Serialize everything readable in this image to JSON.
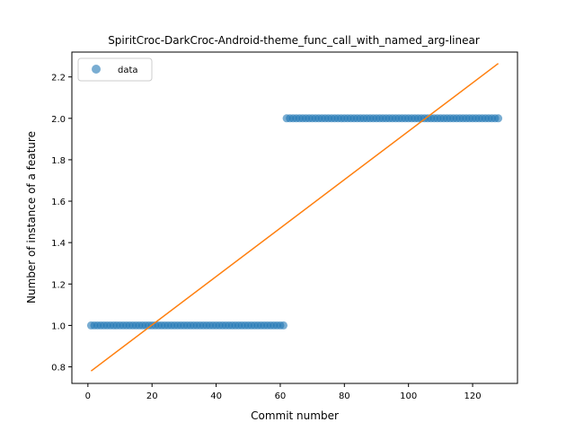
{
  "chart_data": {
    "type": "scatter",
    "title": "SpiritCroc-DarkCroc-Android-theme_func_call_with_named_arg-linear",
    "xlabel": "Commit number",
    "ylabel": "Number of instance of a feature",
    "xlim": [
      -5,
      134
    ],
    "ylim": [
      0.72,
      2.32
    ],
    "xticks": [
      0,
      20,
      40,
      60,
      80,
      100,
      120
    ],
    "yticks": [
      0.8,
      1.0,
      1.2,
      1.4,
      1.6,
      1.8,
      2.0,
      2.2
    ],
    "xtick_labels": [
      "0",
      "20",
      "40",
      "60",
      "80",
      "100",
      "120"
    ],
    "ytick_labels": [
      "0.8",
      "1.0",
      "1.2",
      "1.4",
      "1.6",
      "1.8",
      "2.0",
      "2.2"
    ],
    "legend": {
      "placement": "upper-left",
      "entries": [
        "data"
      ]
    },
    "grid": false,
    "series": [
      {
        "name": "data",
        "kind": "points",
        "color": "#1f77b4",
        "segments": [
          {
            "x_from": 1,
            "x_to": 61,
            "y": 1.0
          },
          {
            "x_from": 62,
            "x_to": 128,
            "y": 2.0
          }
        ]
      },
      {
        "kind": "line",
        "color": "#ff7f0e",
        "points": [
          [
            1,
            0.78
          ],
          [
            128,
            2.265
          ]
        ]
      }
    ]
  }
}
